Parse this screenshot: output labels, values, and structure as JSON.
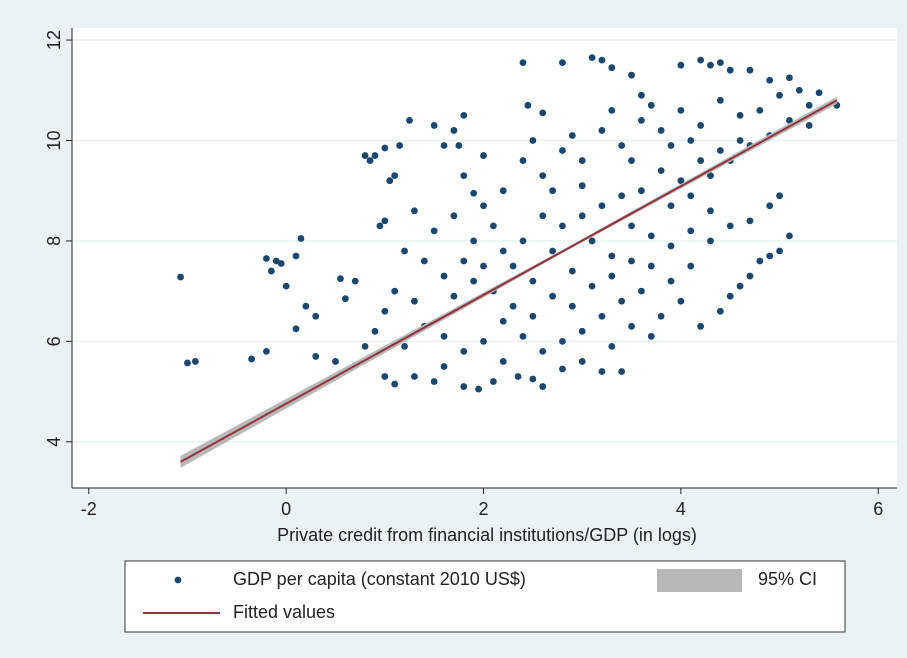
{
  "chart_data": {
    "type": "scatter",
    "x_label": "Private credit from financial institutions/GDP (in logs)",
    "xlim": [
      -2.17,
      6.19
    ],
    "ylim": [
      3.08,
      12.24
    ],
    "xticks": [
      -2,
      0,
      2,
      4,
      6
    ],
    "yticks": [
      4,
      6,
      8,
      10,
      12
    ],
    "grid": true,
    "legend_position": "bottom",
    "series": [
      {
        "name": "GDP per capita (constant 2010 US$)",
        "color": "#1a476f",
        "x": [
          -1.07,
          -1.0,
          -0.92,
          -0.35,
          -0.2,
          -0.15,
          -0.1,
          -0.05,
          0,
          0.1,
          0.15,
          0.1,
          0.2,
          0.3,
          -0.2,
          0.3,
          0.5,
          0.55,
          0.6,
          0.7,
          0.8,
          0.85,
          0.9,
          1.0,
          1.15,
          1.25,
          1.0,
          0.95,
          1.05,
          1.1,
          1.3,
          1.5,
          1.7,
          1.8,
          1.6,
          1.75,
          1.8,
          1.9,
          2.0,
          2.4,
          2.45,
          2.6,
          2.8,
          3.1,
          3.2,
          3.3,
          3.5,
          3.6,
          4.0,
          4.2,
          4.3,
          4.4,
          4.5,
          4.7,
          4.9,
          5.1,
          5.2,
          5.4,
          5.58,
          5.3,
          5.0,
          4.8,
          4.6,
          4.4,
          4.2,
          4.0,
          3.8,
          3.6,
          3.4,
          3.2,
          3.0,
          2.8,
          2.6,
          2.4,
          2.2,
          2.0,
          1.9,
          1.7,
          1.5,
          1.4,
          1.2,
          1.1,
          1.0,
          0.9,
          0.8,
          1.0,
          1.1,
          1.3,
          1.5,
          1.6,
          1.8,
          1.95,
          2.1,
          2.2,
          2.35,
          2.5,
          2.6,
          2.8,
          3.0,
          3.2,
          3.4,
          3.3,
          3.5,
          3.7,
          3.8,
          4.0,
          4.2,
          4.4,
          4.5,
          4.6,
          4.7,
          4.8,
          4.9,
          5.0,
          4.9,
          5.0,
          5.1,
          4.7,
          4.5,
          4.3,
          4.1,
          3.9,
          3.6,
          3.4,
          3.2,
          3.0,
          2.8,
          2.6,
          2.4,
          2.2,
          2.0,
          1.8,
          1.6,
          1.4,
          1.2,
          1.7,
          1.9,
          2.1,
          2.3,
          2.5,
          2.7,
          2.9,
          3.1,
          3.3,
          3.5,
          3.7,
          3.9,
          4.1,
          4.3,
          4.5,
          4.7,
          4.9,
          5.1,
          5.3,
          4.6,
          4.4,
          4.2,
          4.0,
          3.8,
          3.6,
          3.4,
          3.2,
          3.0,
          2.8,
          2.6,
          2.4,
          2.2,
          2.0,
          2.3,
          2.5,
          2.7,
          2.9,
          3.1,
          3.3,
          3.5,
          3.7,
          3.9,
          4.1,
          4.3,
          3.0,
          2.7,
          3.5,
          3.9,
          4.1,
          3.7,
          3.3,
          2.9,
          2.5,
          2.1,
          1.8,
          1.6,
          1.3
        ],
        "y": [
          7.28,
          5.57,
          5.6,
          5.65,
          7.65,
          7.4,
          7.6,
          7.55,
          7.1,
          7.7,
          8.05,
          6.25,
          6.7,
          6.5,
          5.8,
          5.7,
          5.6,
          7.25,
          6.85,
          7.2,
          9.7,
          9.6,
          9.7,
          9.85,
          9.9,
          10.4,
          8.4,
          8.3,
          9.2,
          9.3,
          8.6,
          10.3,
          10.2,
          10.5,
          9.9,
          9.9,
          9.3,
          8.95,
          9.7,
          11.55,
          10.7,
          10.55,
          11.55,
          11.65,
          11.6,
          11.45,
          11.3,
          10.9,
          11.5,
          11.6,
          11.5,
          11.55,
          11.4,
          11.4,
          11.2,
          11.25,
          11.0,
          10.95,
          10.7,
          10.7,
          10.9,
          10.6,
          10.5,
          10.8,
          10.3,
          10.6,
          10.2,
          10.4,
          9.9,
          10.2,
          9.6,
          9.8,
          9.3,
          9.6,
          9.0,
          8.7,
          8.0,
          8.5,
          8.2,
          7.6,
          7.8,
          7.0,
          6.6,
          6.2,
          5.9,
          5.3,
          5.15,
          5.3,
          5.2,
          5.5,
          5.1,
          5.05,
          5.2,
          5.6,
          5.3,
          5.25,
          5.1,
          5.45,
          5.6,
          5.4,
          5.4,
          5.9,
          6.3,
          6.1,
          6.5,
          6.8,
          6.3,
          6.6,
          6.9,
          7.1,
          7.3,
          7.6,
          7.7,
          7.8,
          8.7,
          8.9,
          8.1,
          8.4,
          8.3,
          8.0,
          7.5,
          7.2,
          7.0,
          6.8,
          6.5,
          6.2,
          6.0,
          5.8,
          6.1,
          6.4,
          6.0,
          5.8,
          6.1,
          6.3,
          5.9,
          6.9,
          7.2,
          7.0,
          7.5,
          7.2,
          7.8,
          7.4,
          8.0,
          7.7,
          8.3,
          8.1,
          8.7,
          8.9,
          9.3,
          9.6,
          9.9,
          10.1,
          10.4,
          10.3,
          10.0,
          9.8,
          9.6,
          9.2,
          9.4,
          9.0,
          8.9,
          8.7,
          8.5,
          8.3,
          8.5,
          8.0,
          7.8,
          7.5,
          6.7,
          6.5,
          6.9,
          6.7,
          7.1,
          7.3,
          7.6,
          7.5,
          7.9,
          8.2,
          8.6,
          9.1,
          9.0,
          9.6,
          9.9,
          10.0,
          10.7,
          10.6,
          10.1,
          10.0,
          8.3,
          7.6,
          7.3,
          6.8
        ]
      },
      {
        "name": "Fitted values",
        "color": "#90353b",
        "ci_name": "95% CI",
        "ci_color": "#b8b8b8",
        "x": [
          -1.07,
          2.8,
          5.58
        ],
        "y": [
          3.6,
          7.79,
          10.8
        ],
        "ci_lower": [
          3.48,
          7.76,
          10.73
        ],
        "ci_upper": [
          3.72,
          7.82,
          10.87
        ]
      }
    ]
  }
}
